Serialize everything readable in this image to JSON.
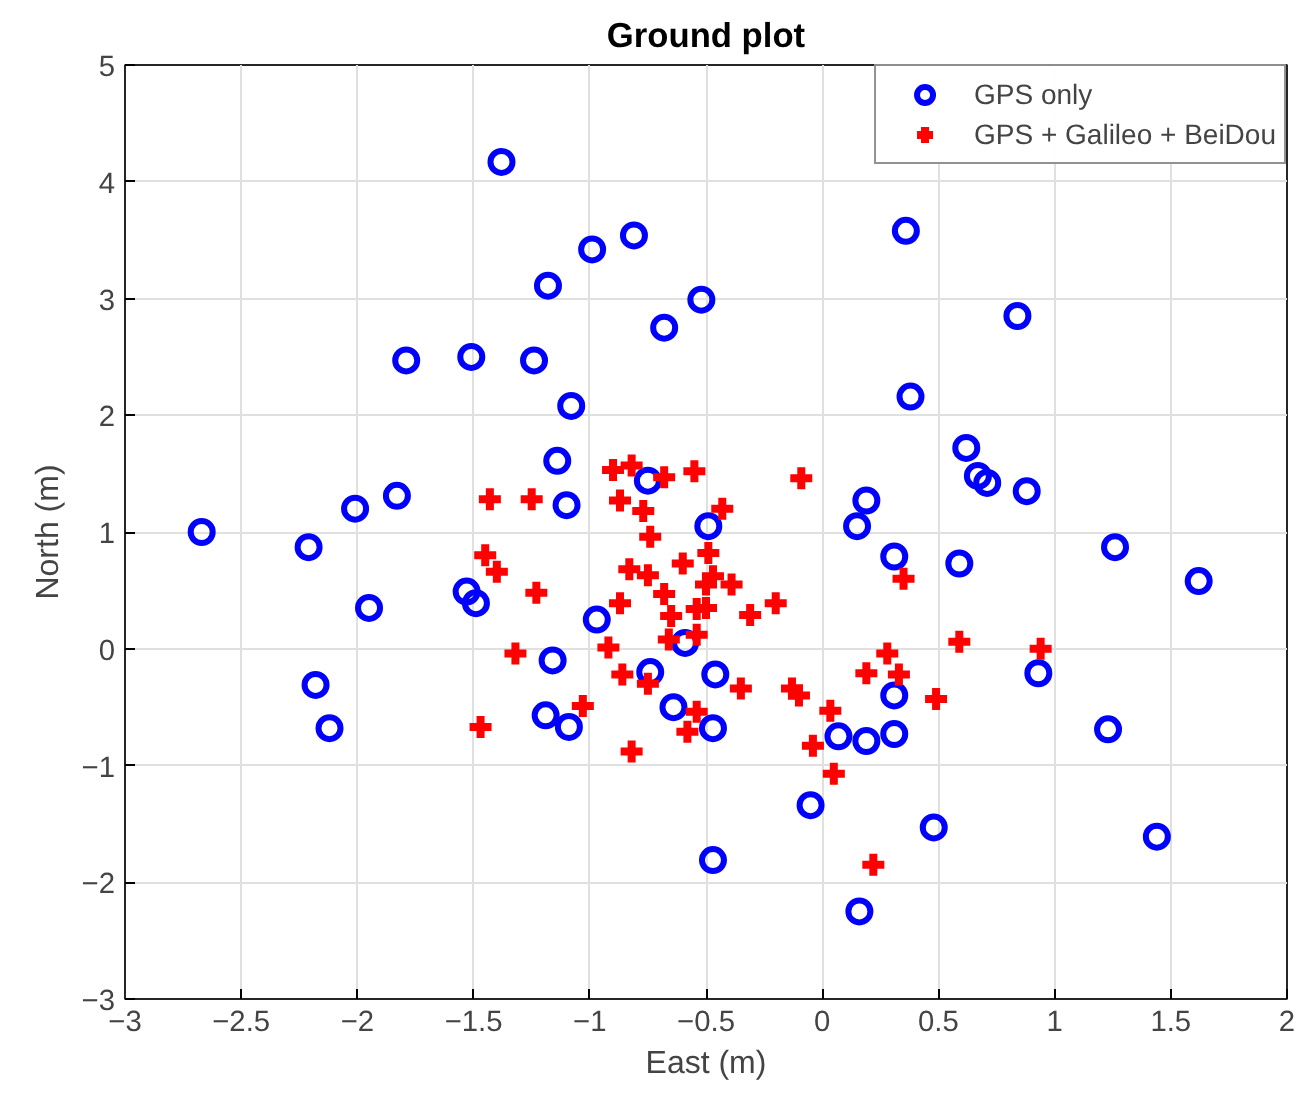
{
  "chart_data": {
    "type": "scatter",
    "title": "Ground plot",
    "xlabel": "East (m)",
    "ylabel": "North (m)",
    "xlim": [
      -3,
      2
    ],
    "ylim": [
      -3,
      5
    ],
    "xticks": [
      -3,
      -2.5,
      -2,
      -1.5,
      -1,
      -0.5,
      0,
      0.5,
      1,
      1.5,
      2
    ],
    "yticks": [
      -3,
      -2,
      -1,
      0,
      1,
      2,
      3,
      4,
      5
    ],
    "grid": true,
    "legend": "top right",
    "series": [
      {
        "name": "GPS only",
        "color": "#0000ff",
        "marker": "circle",
        "x": [
          -2.67,
          -2.21,
          -1.95,
          -1.53,
          -1.49,
          -0.97,
          -0.59,
          -0.49,
          -2.18,
          -2.12,
          -1.16,
          -1.19,
          -1.09,
          -0.74,
          -0.64,
          -0.46,
          -0.47,
          -0.47,
          -1.38,
          -0.81,
          -0.99,
          -1.18,
          -0.52,
          -0.68,
          -1.79,
          -1.51,
          -1.24,
          -1.08,
          -1.14,
          -0.75,
          -1.1,
          -1.83,
          -2.01,
          0.36,
          0.84,
          0.38,
          0.62,
          0.67,
          0.71,
          0.88,
          0.19,
          0.15,
          1.26,
          1.62,
          0.31,
          0.59,
          0.93,
          0.31,
          0.07,
          0.19,
          0.31,
          1.23,
          -0.05,
          0.48,
          1.44,
          0.16
        ],
        "values": [
          1.0,
          0.87,
          0.35,
          0.49,
          0.39,
          0.25,
          0.05,
          1.05,
          -0.31,
          -0.68,
          -0.1,
          -0.57,
          -0.67,
          -0.2,
          -0.5,
          -0.22,
          -0.68,
          -1.81,
          4.17,
          3.54,
          3.42,
          3.11,
          2.99,
          2.75,
          2.47,
          2.5,
          2.47,
          2.08,
          1.61,
          1.44,
          1.23,
          1.31,
          1.2,
          3.58,
          2.85,
          2.16,
          1.72,
          1.48,
          1.42,
          1.35,
          1.27,
          1.05,
          0.87,
          0.58,
          0.79,
          0.73,
          -0.21,
          -0.4,
          -0.75,
          -0.79,
          -0.73,
          -0.69,
          -1.34,
          -1.53,
          -1.61,
          -2.25
        ]
      },
      {
        "name": "GPS + Galileo + BeiDou",
        "color": "#ff0000",
        "marker": "cross",
        "x": [
          -0.9,
          -0.82,
          -0.68,
          -0.55,
          -1.43,
          -1.25,
          -0.87,
          -0.77,
          -0.74,
          -0.09,
          -0.43,
          -1.45,
          -1.4,
          -1.23,
          -0.83,
          -0.75,
          -0.6,
          -0.49,
          -0.47,
          -0.5,
          -0.68,
          -0.87,
          -0.65,
          -0.54,
          -0.5,
          -0.66,
          -0.54,
          -1.32,
          -0.92,
          -0.86,
          -0.75,
          -1.03,
          -0.54,
          -0.58,
          -0.82,
          -1.47,
          -0.39,
          -0.2,
          -0.31,
          0.35,
          0.59,
          0.94,
          0.28,
          0.19,
          0.33,
          -0.35,
          -0.13,
          -0.1,
          0.49,
          0.035,
          -0.04,
          0.05,
          0.22
        ],
        "values": [
          1.53,
          1.57,
          1.47,
          1.52,
          1.28,
          1.28,
          1.27,
          1.18,
          0.96,
          1.46,
          1.2,
          0.8,
          0.66,
          0.48,
          0.68,
          0.63,
          0.73,
          0.82,
          0.62,
          0.55,
          0.47,
          0.39,
          0.28,
          0.34,
          0.35,
          0.08,
          0.12,
          -0.04,
          0.01,
          -0.22,
          -0.3,
          -0.49,
          -0.54,
          -0.71,
          -0.88,
          -0.67,
          0.55,
          0.39,
          0.29,
          0.6,
          0.06,
          0.0,
          -0.04,
          -0.21,
          -0.22,
          -0.34,
          -0.34,
          -0.4,
          -0.43,
          -0.53,
          -0.83,
          -1.07,
          -1.85
        ]
      }
    ]
  }
}
